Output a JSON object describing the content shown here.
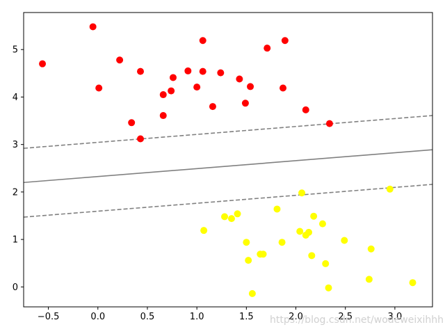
{
  "chart_data": {
    "type": "scatter",
    "title": "",
    "xlabel": "",
    "ylabel": "",
    "xlim": [
      -0.75,
      3.38
    ],
    "ylim": [
      -0.42,
      5.78
    ],
    "x_ticks": [
      -0.5,
      0.0,
      0.5,
      1.0,
      1.5,
      2.0,
      2.5,
      3.0
    ],
    "x_tick_labels": [
      "−0.5",
      "0.0",
      "0.5",
      "1.0",
      "1.5",
      "2.0",
      "2.5",
      "3.0"
    ],
    "y_ticks": [
      0,
      1,
      2,
      3,
      4,
      5
    ],
    "y_tick_labels": [
      "0",
      "1",
      "2",
      "3",
      "4",
      "5"
    ],
    "grid": false,
    "legend": "none",
    "series": [
      {
        "color": "#ff0000",
        "points": [
          [
            -0.56,
            4.7
          ],
          [
            -0.05,
            5.48
          ],
          [
            0.01,
            4.19
          ],
          [
            0.22,
            4.78
          ],
          [
            0.34,
            3.46
          ],
          [
            0.43,
            4.54
          ],
          [
            0.43,
            3.12
          ],
          [
            0.66,
            4.05
          ],
          [
            0.66,
            3.61
          ],
          [
            0.74,
            4.13
          ],
          [
            0.76,
            4.41
          ],
          [
            0.91,
            4.55
          ],
          [
            1.0,
            4.21
          ],
          [
            1.06,
            5.19
          ],
          [
            1.06,
            4.54
          ],
          [
            1.16,
            3.8
          ],
          [
            1.24,
            4.51
          ],
          [
            1.43,
            4.38
          ],
          [
            1.49,
            3.87
          ],
          [
            1.54,
            4.22
          ],
          [
            1.71,
            5.03
          ],
          [
            1.87,
            4.19
          ],
          [
            1.89,
            5.19
          ],
          [
            2.1,
            3.73
          ],
          [
            2.34,
            3.44
          ]
        ]
      },
      {
        "color": "#ffff00",
        "points": [
          [
            1.07,
            1.19
          ],
          [
            1.28,
            1.48
          ],
          [
            1.35,
            1.44
          ],
          [
            1.41,
            1.54
          ],
          [
            1.5,
            0.94
          ],
          [
            1.52,
            0.56
          ],
          [
            1.56,
            -0.14
          ],
          [
            1.64,
            0.69
          ],
          [
            1.67,
            0.69
          ],
          [
            1.81,
            1.64
          ],
          [
            1.86,
            0.94
          ],
          [
            2.04,
            1.17
          ],
          [
            2.06,
            1.98
          ],
          [
            2.1,
            1.09
          ],
          [
            2.13,
            1.15
          ],
          [
            2.16,
            0.66
          ],
          [
            2.18,
            1.49
          ],
          [
            2.27,
            1.33
          ],
          [
            2.3,
            0.49
          ],
          [
            2.33,
            -0.02
          ],
          [
            2.49,
            0.98
          ],
          [
            2.74,
            0.16
          ],
          [
            2.76,
            0.8
          ],
          [
            2.95,
            2.06
          ],
          [
            3.18,
            0.09
          ]
        ]
      }
    ],
    "lines": [
      {
        "style": "dashed",
        "color": "#808080",
        "points": [
          [
            -0.75,
            2.92
          ],
          [
            3.38,
            3.61
          ]
        ]
      },
      {
        "style": "solid",
        "color": "#808080",
        "points": [
          [
            -0.75,
            2.2
          ],
          [
            3.38,
            2.89
          ]
        ]
      },
      {
        "style": "dashed",
        "color": "#808080",
        "points": [
          [
            -0.75,
            1.47
          ],
          [
            3.38,
            2.16
          ]
        ]
      }
    ]
  },
  "watermark": "https://blog.csdn.net/wodeweixihhh"
}
